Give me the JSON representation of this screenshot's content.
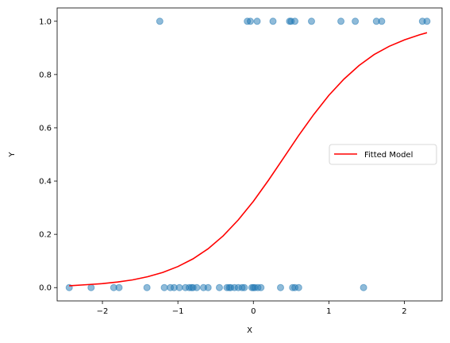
{
  "chart_data": {
    "type": "scatter",
    "xlabel": "X",
    "ylabel": "Y",
    "xlim": [
      -2.6,
      2.5
    ],
    "ylim": [
      -0.05,
      1.05
    ],
    "x_ticks": [
      -2,
      -1,
      0,
      1,
      2
    ],
    "x_tick_labels": [
      "−2",
      "−1",
      "0",
      "1",
      "2"
    ],
    "y_ticks": [
      0.0,
      0.2,
      0.4,
      0.6,
      0.8,
      1.0
    ],
    "y_tick_labels": [
      "0.0",
      "0.2",
      "0.4",
      "0.6",
      "0.8",
      "1.0"
    ],
    "grid": false,
    "legend_position": "center-right",
    "series": [
      {
        "type": "scatter",
        "color": "#1f77b4",
        "alpha": 0.5,
        "points": [
          [
            -2.44,
            0
          ],
          [
            -2.15,
            0
          ],
          [
            -1.85,
            0
          ],
          [
            -1.78,
            0
          ],
          [
            -1.41,
            0
          ],
          [
            -1.18,
            0
          ],
          [
            -1.1,
            0
          ],
          [
            -1.05,
            0
          ],
          [
            -0.98,
            0
          ],
          [
            -0.9,
            0
          ],
          [
            -0.85,
            0
          ],
          [
            -0.82,
            0
          ],
          [
            -0.8,
            0
          ],
          [
            -0.75,
            0
          ],
          [
            -0.66,
            0
          ],
          [
            -0.6,
            0
          ],
          [
            -0.45,
            0
          ],
          [
            -0.35,
            0
          ],
          [
            -0.32,
            0
          ],
          [
            -0.3,
            0
          ],
          [
            -0.25,
            0
          ],
          [
            -0.2,
            0
          ],
          [
            -0.15,
            0
          ],
          [
            -0.12,
            0
          ],
          [
            -0.02,
            0
          ],
          [
            0.0,
            0
          ],
          [
            0.02,
            0
          ],
          [
            0.06,
            0
          ],
          [
            0.1,
            0
          ],
          [
            0.36,
            0
          ],
          [
            0.52,
            0
          ],
          [
            0.55,
            0
          ],
          [
            0.6,
            0
          ],
          [
            1.46,
            0
          ],
          [
            -1.24,
            1
          ],
          [
            -0.08,
            1
          ],
          [
            -0.04,
            1
          ],
          [
            0.05,
            1
          ],
          [
            0.26,
            1
          ],
          [
            0.48,
            1
          ],
          [
            0.5,
            1
          ],
          [
            0.55,
            1
          ],
          [
            0.77,
            1
          ],
          [
            1.16,
            1
          ],
          [
            1.35,
            1
          ],
          [
            1.63,
            1
          ],
          [
            1.7,
            1
          ],
          [
            2.24,
            1
          ],
          [
            2.3,
            1
          ]
        ]
      },
      {
        "type": "line",
        "name": "Fitted Model",
        "color": "#ff0000",
        "x": [
          -2.44,
          -2.2,
          -2.0,
          -1.8,
          -1.6,
          -1.4,
          -1.2,
          -1.0,
          -0.8,
          -0.6,
          -0.4,
          -0.2,
          0.0,
          0.2,
          0.4,
          0.6,
          0.8,
          1.0,
          1.2,
          1.4,
          1.6,
          1.8,
          2.0,
          2.2,
          2.3
        ],
        "y": [
          0.007,
          0.011,
          0.015,
          0.021,
          0.029,
          0.041,
          0.057,
          0.079,
          0.108,
          0.146,
          0.194,
          0.254,
          0.324,
          0.403,
          0.487,
          0.571,
          0.65,
          0.722,
          0.783,
          0.834,
          0.875,
          0.906,
          0.93,
          0.949,
          0.957
        ]
      }
    ]
  }
}
